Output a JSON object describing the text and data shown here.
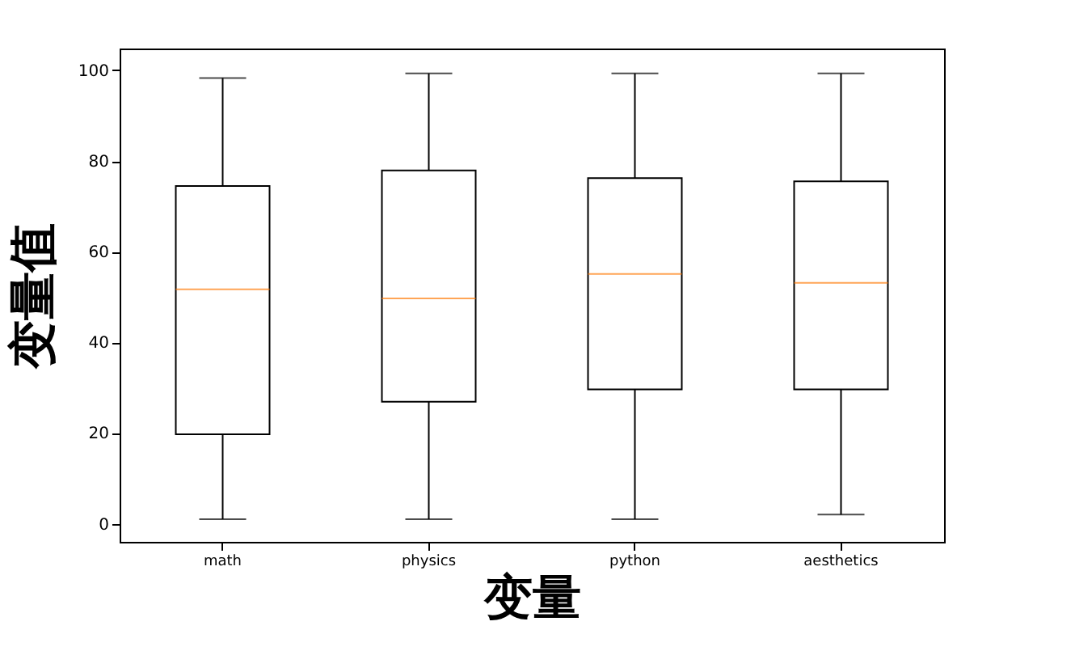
{
  "chart_data": {
    "type": "box",
    "xlabel": "变量",
    "ylabel": "变量值",
    "categories": [
      "math",
      "physics",
      "python",
      "aesthetics"
    ],
    "series": [
      {
        "color": "#000000",
        "boxes": [
          {
            "low": 1,
            "q1": 19.7,
            "median": 51.7,
            "q3": 74.5,
            "high": 98.3
          },
          {
            "low": 1,
            "q1": 26.9,
            "median": 49.7,
            "q3": 77.9,
            "high": 99.3
          },
          {
            "low": 1,
            "q1": 29.6,
            "median": 55.1,
            "q3": 76.2,
            "high": 99.3
          },
          {
            "low": 2,
            "q1": 29.6,
            "median": 53.1,
            "q3": 75.5,
            "high": 99.3
          }
        ]
      }
    ],
    "ylim": [
      -4,
      104.8
    ],
    "yticks": [
      0,
      20,
      40,
      60,
      80,
      100
    ],
    "grid": false
  }
}
